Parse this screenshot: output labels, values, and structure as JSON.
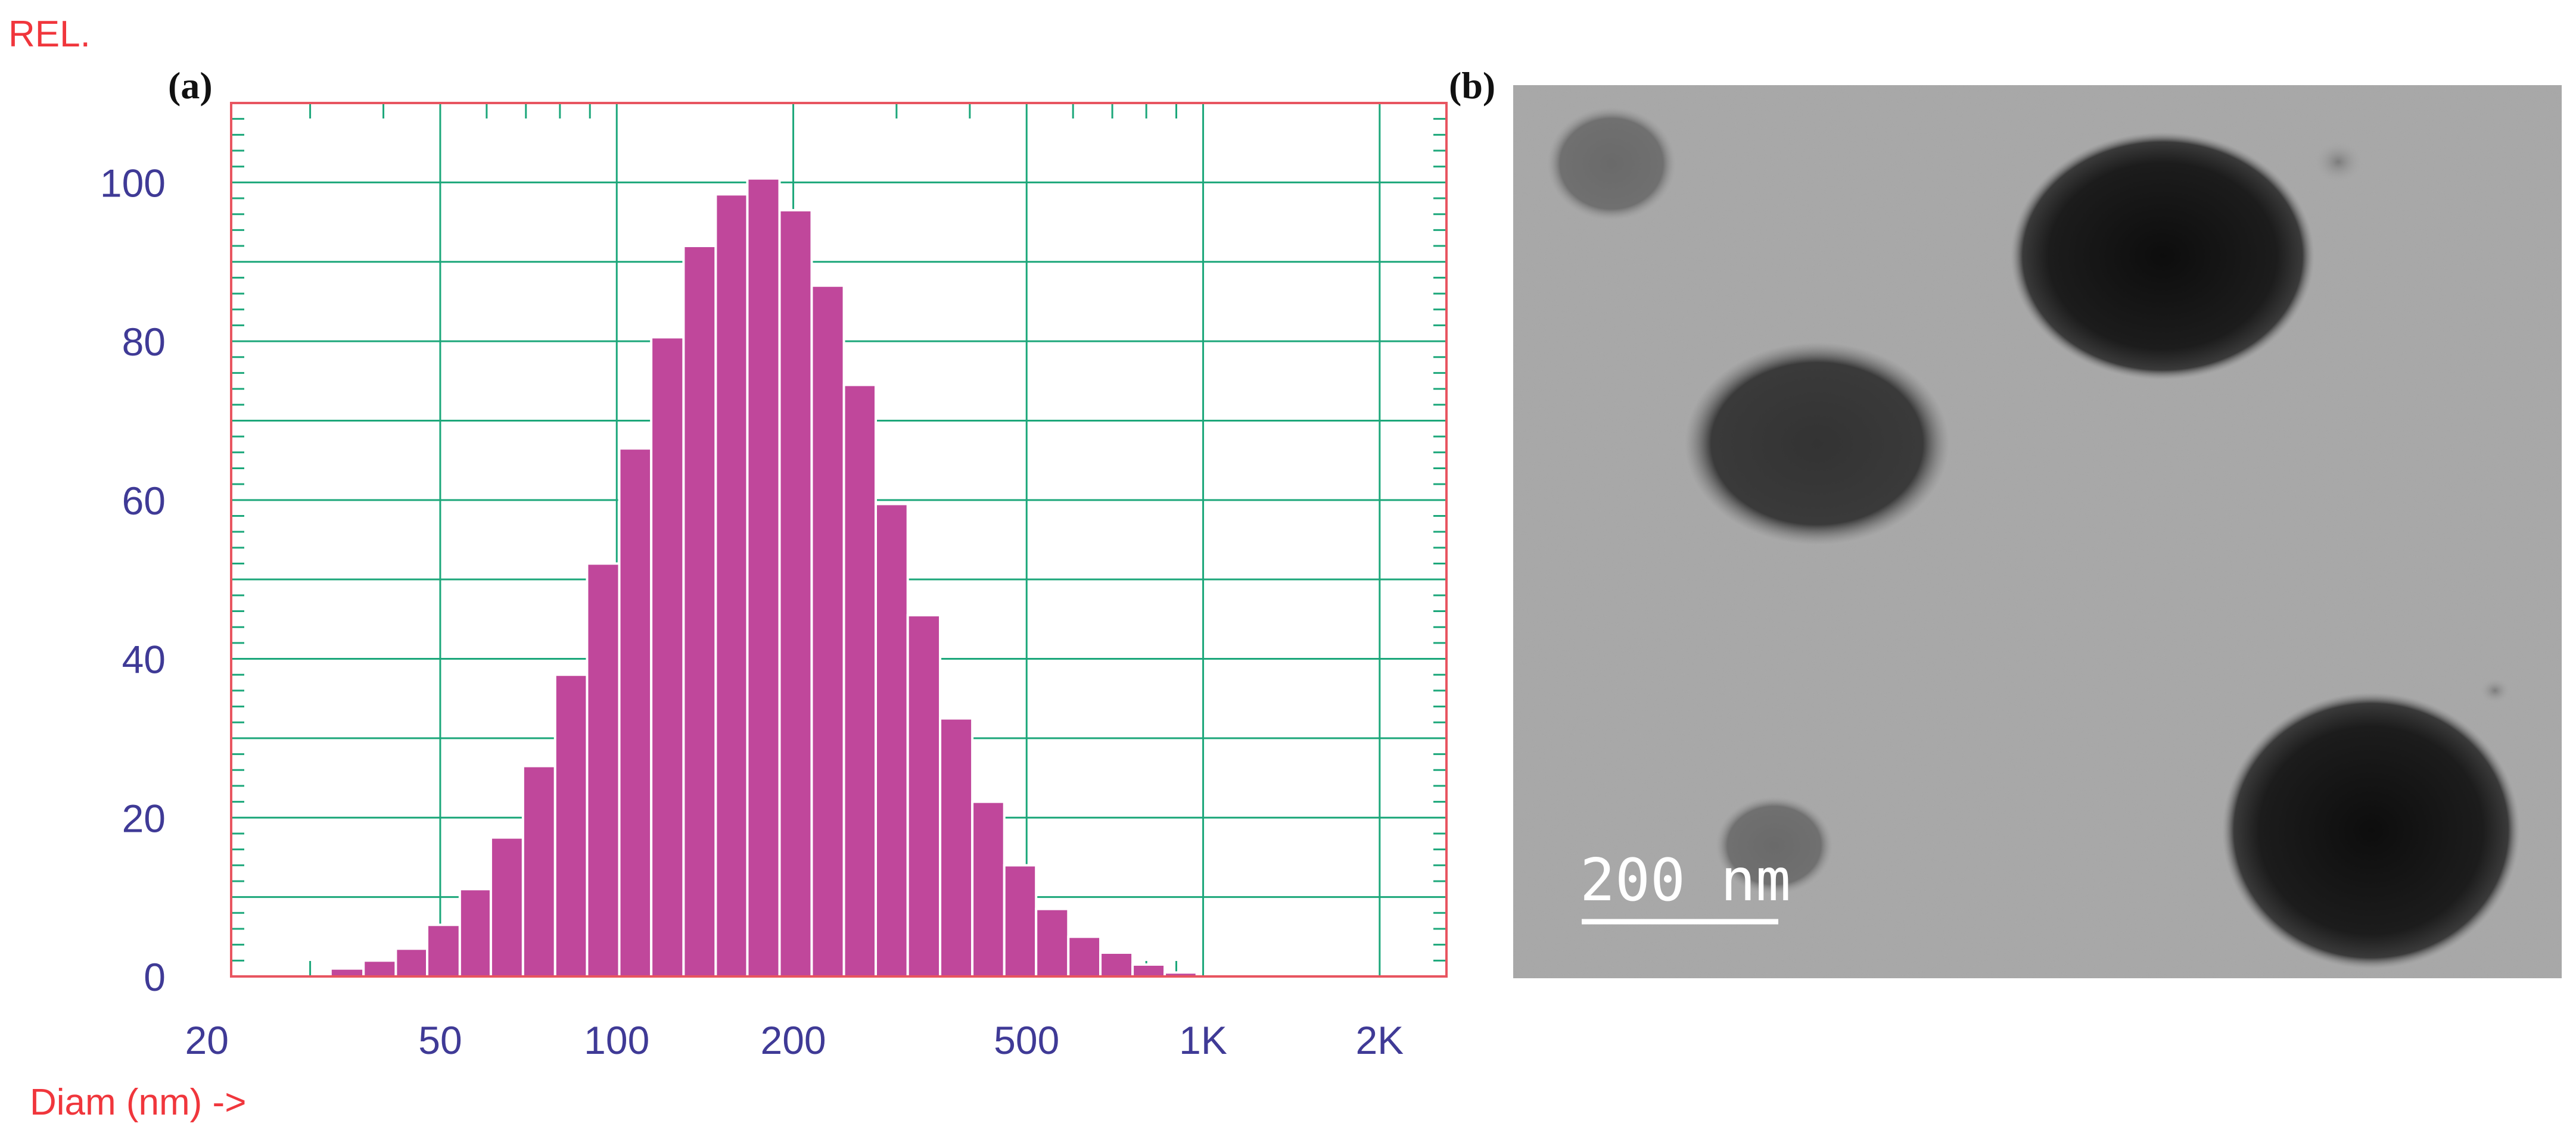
{
  "chart_data": {
    "type": "bar",
    "panel_label": "(a)",
    "ylabel": "REL.",
    "xlabel": "Diam (nm) ->",
    "x_scale": "log",
    "xlim": [
      22,
      2600
    ],
    "ylim": [
      0,
      110
    ],
    "y_ticks": [
      0,
      20,
      40,
      60,
      80,
      100
    ],
    "y_tick_labels": [
      "0",
      "20",
      "40",
      "60",
      "80",
      "100"
    ],
    "x_ticks": [
      20,
      50,
      100,
      200,
      500,
      1000,
      2000
    ],
    "x_tick_labels": [
      "20",
      "50",
      "100",
      "200",
      "500",
      "1K",
      "2K"
    ],
    "grid": true,
    "bin_edges": [
      32.5,
      37,
      42,
      47.5,
      54,
      61,
      69.2,
      78.5,
      89,
      101,
      114.5,
      130,
      147.5,
      167,
      189.5,
      215,
      244,
      276.5,
      313.5,
      356,
      404,
      458,
      519,
      589,
      668,
      758,
      860,
      975,
      1106,
      1254,
      1423
    ],
    "values": [
      1,
      2,
      3.5,
      6.5,
      11,
      17.5,
      26.5,
      38,
      52,
      66.5,
      80.5,
      92,
      98.5,
      100.5,
      96.5,
      87,
      74.5,
      59.5,
      45.5,
      32.5,
      22,
      14,
      8.5,
      5,
      3,
      1.5,
      0.5,
      0,
      0,
      0
    ],
    "bar_color": "#c0479b",
    "frame_color": "#e85560",
    "grid_color": "#1ca77a",
    "tick_label_color": "#3f3a96",
    "axis_label_color": "#f0363c"
  },
  "micrograph": {
    "panel_label": "(b)",
    "scale_bar_label": "200 nm"
  }
}
